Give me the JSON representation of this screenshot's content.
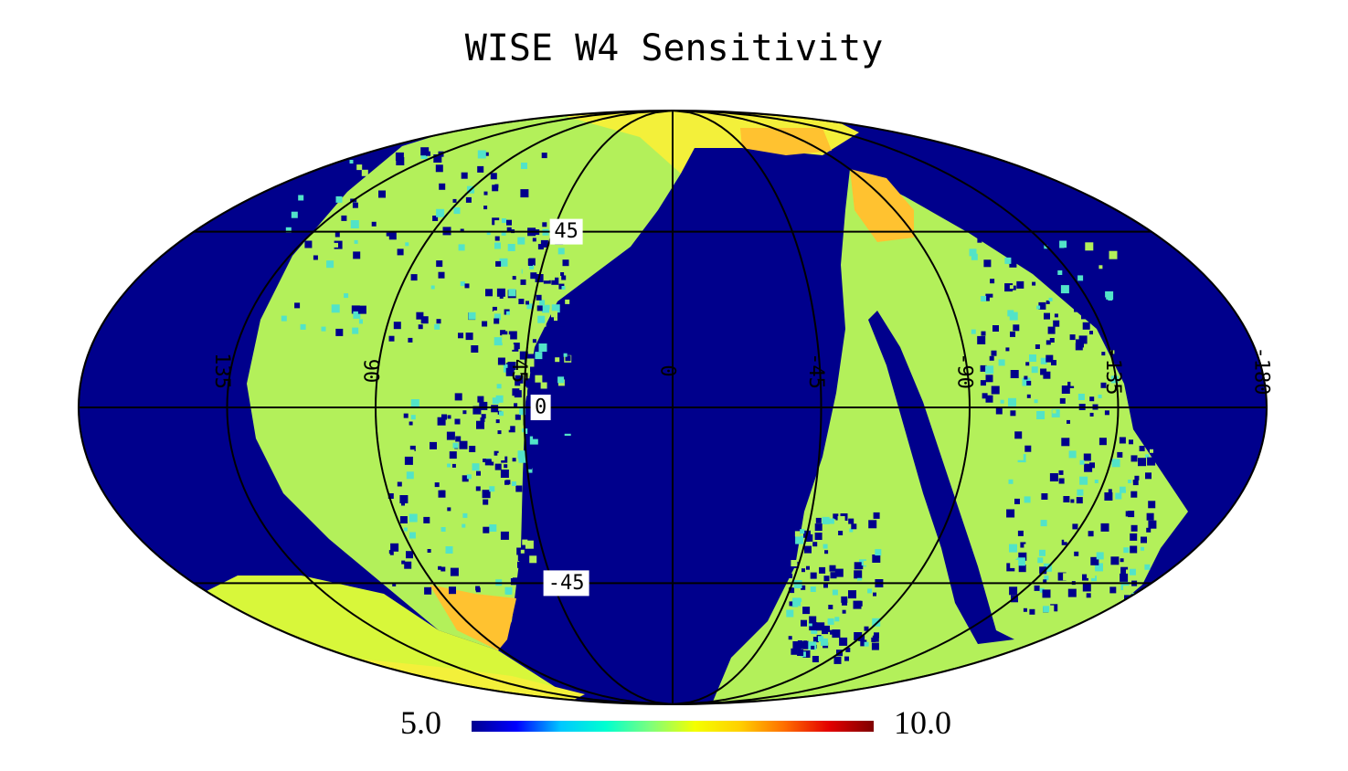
{
  "chart_data": {
    "type": "heatmap",
    "projection": "mollweide",
    "title": "WISE W4 Sensitivity",
    "grid": true,
    "graticule": {
      "longitudes": [
        -180,
        -135,
        -90,
        -45,
        0,
        45,
        90,
        135,
        180
      ],
      "latitudes": [
        -45,
        0,
        45
      ],
      "lon_labels": [
        {
          "lon": -180,
          "text": "-180"
        },
        {
          "lon": 135,
          "text": "135"
        },
        {
          "lon": 90,
          "text": "90"
        },
        {
          "lon": 45,
          "text": "45"
        },
        {
          "lon": 0,
          "text": "0"
        },
        {
          "lon": -45,
          "text": "-45"
        },
        {
          "lon": -90,
          "text": "-90"
        },
        {
          "lon": -135,
          "text": "-135"
        }
      ],
      "lat_labels": [
        {
          "lat": 45,
          "text": "45"
        },
        {
          "lat": 0,
          "text": "0"
        },
        {
          "lat": -45,
          "text": "-45"
        }
      ]
    },
    "colorbar": {
      "min": 5.0,
      "max": 10.0,
      "min_label": "5.0",
      "max_label": "10.0",
      "colormap": [
        "#00008f",
        "#0000ff",
        "#00c8ff",
        "#00ffd0",
        "#7dff7d",
        "#f4ff00",
        "#ffd000",
        "#ff6e00",
        "#e30000",
        "#7f0000"
      ]
    },
    "background_value_color": "#00008c",
    "coverage_colors": {
      "light_green": "#b3f05a",
      "yellow_green": "#d8f73a",
      "yellow": "#f3f03a",
      "orange": "#ffc230",
      "cyan": "#52e3c8"
    }
  }
}
